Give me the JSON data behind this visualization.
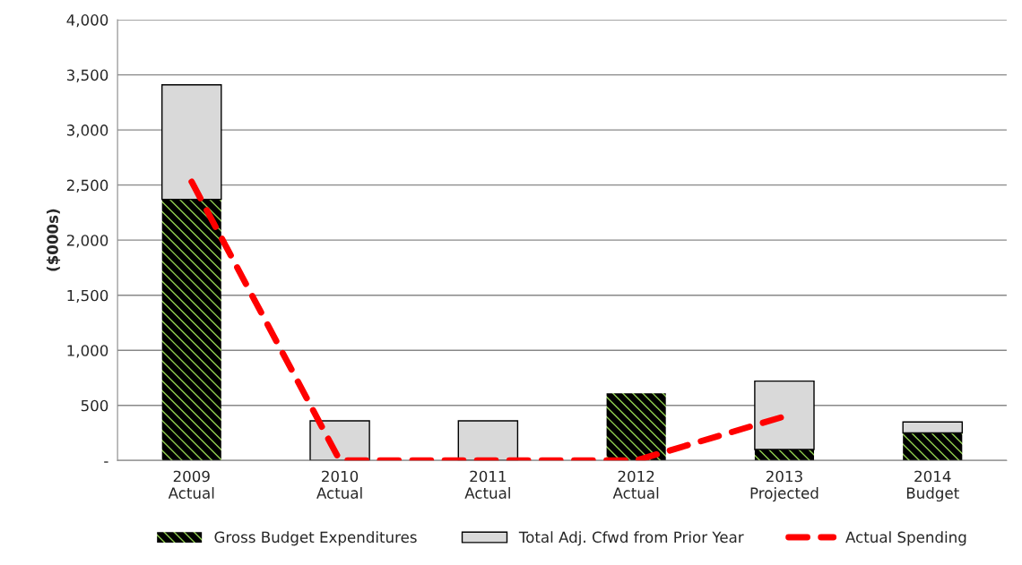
{
  "chart_data": {
    "type": "bar",
    "stacked": true,
    "ylabel": "($000s)",
    "categories": [
      "2009\nActual",
      "2010\nActual",
      "2011\nActual",
      "2012\nActual",
      "2013\nProjected",
      "2014\nBudget"
    ],
    "series": [
      {
        "name": "Gross Budget Expenditures",
        "color": "#92d050",
        "values": [
          2370,
          null,
          null,
          610,
          100,
          250
        ]
      },
      {
        "name": "Total Adj. Cfwd from Prior Year",
        "color": "#d9d9d9",
        "values": [
          1040,
          360,
          360,
          null,
          620,
          100
        ]
      },
      {
        "name": "Actual Spending",
        "type": "line",
        "color": "#ff0000",
        "line_style": "dashed",
        "marker": "none",
        "values": [
          2530,
          0,
          0,
          0,
          400,
          null
        ]
      }
    ],
    "ylim": [
      0,
      4000
    ],
    "yticks": [
      {
        "value": 0,
        "label": "-"
      },
      {
        "value": 500,
        "label": "500"
      },
      {
        "value": 1000,
        "label": "1,000"
      },
      {
        "value": 1500,
        "label": "1,500"
      },
      {
        "value": 2000,
        "label": "2,000"
      },
      {
        "value": 2500,
        "label": "2,500"
      },
      {
        "value": 3000,
        "label": "3,000"
      },
      {
        "value": 3500,
        "label": "3,500"
      },
      {
        "value": 4000,
        "label": "4,000"
      }
    ],
    "grid": "y",
    "legend": "bottom"
  }
}
